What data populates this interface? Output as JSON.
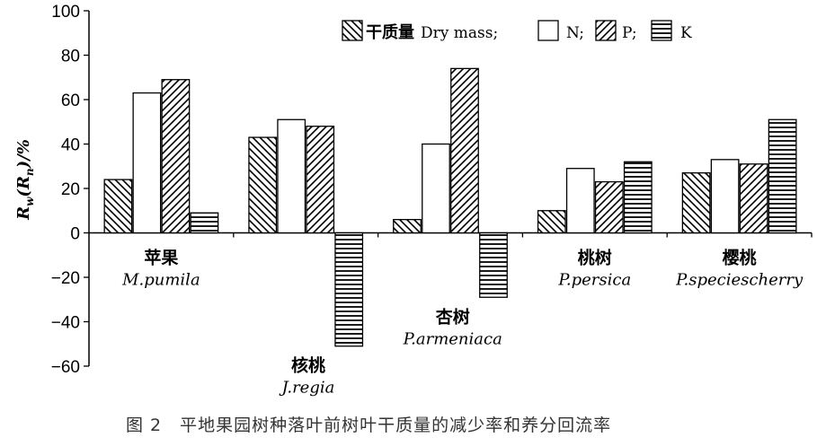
{
  "chart_data": {
    "type": "bar",
    "title": "",
    "ylabel": "R_w(R_n)/%",
    "ylabel_parts": {
      "r1": "R",
      "sub1": "w",
      "mid": "(",
      "r2": "R",
      "sub2": "n",
      "tail": ")/%"
    },
    "ylim": [
      -60,
      100
    ],
    "yticks": [
      -60,
      -40,
      -20,
      0,
      20,
      40,
      60,
      80,
      100
    ],
    "ytick_labels": [
      "−60",
      "−40",
      "−20",
      "0",
      "20",
      "40",
      "60",
      "80",
      "100"
    ],
    "grid": false,
    "legend_position": "top-right",
    "categories": [
      {
        "cn": "苹果",
        "latin": "M.pumila"
      },
      {
        "cn": "核桃",
        "latin": "J.regia"
      },
      {
        "cn": "杏树",
        "latin": "P.armeniaca"
      },
      {
        "cn": "桃树",
        "latin": "P.persica"
      },
      {
        "cn": "樱桃",
        "latin": "P.speciescherry"
      }
    ],
    "series": [
      {
        "name": "干质量 Dry mass;",
        "name_cn": "干质量",
        "name_en": "Dry mass;",
        "pattern": "diag-back",
        "values": [
          24,
          43,
          6,
          10,
          27
        ]
      },
      {
        "name": "N;",
        "pattern": "none",
        "values": [
          63,
          51,
          40,
          29,
          33
        ]
      },
      {
        "name": "P;",
        "pattern": "diag-fwd",
        "values": [
          69,
          48,
          74,
          23,
          31
        ]
      },
      {
        "name": "K",
        "pattern": "horizontal",
        "values": [
          9,
          -51,
          -29,
          32,
          51
        ]
      }
    ]
  },
  "caption": "图 2　平地果园树种落叶前树叶干质量的减少率和养分回流率"
}
